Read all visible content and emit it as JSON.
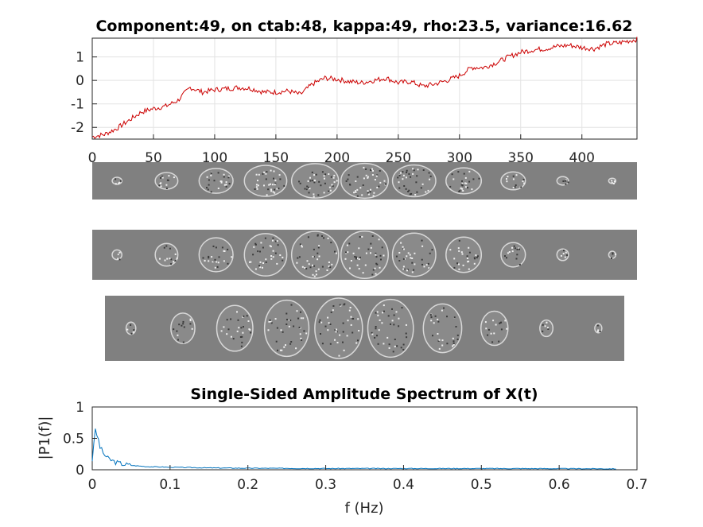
{
  "figure": {
    "background": "#ffffff",
    "axis_color": "#262626",
    "grid_color": "#e3e3e3"
  },
  "chart_data": [
    {
      "type": "line",
      "title": "Component:49, on ctab:48, kappa:49, rho:23.5, variance:16.62",
      "xlabel": "",
      "ylabel": "",
      "xlim": [
        0,
        445
      ],
      "ylim": [
        -2.5,
        1.8
      ],
      "xticks": [
        0,
        50,
        100,
        150,
        200,
        250,
        300,
        350,
        400
      ],
      "yticks": [
        -2,
        -1,
        0,
        1
      ],
      "grid": true,
      "color": "#cc0000",
      "series": [
        {
          "x": [
            0,
            10,
            20,
            30,
            40,
            50,
            60,
            70,
            80,
            90,
            100,
            110,
            120,
            130,
            140,
            150,
            160,
            170,
            180,
            190,
            200,
            210,
            220,
            230,
            240,
            250,
            260,
            270,
            280,
            290,
            300,
            310,
            320,
            330,
            340,
            350,
            360,
            370,
            380,
            390,
            400,
            410,
            420,
            430,
            440,
            445
          ],
          "values": [
            -2.4,
            -2.3,
            -2.05,
            -1.7,
            -1.35,
            -1.2,
            -1.1,
            -0.85,
            -0.3,
            -0.5,
            -0.4,
            -0.35,
            -0.3,
            -0.35,
            -0.5,
            -0.5,
            -0.45,
            -0.6,
            -0.15,
            0.1,
            0.05,
            -0.05,
            -0.1,
            0.0,
            0.1,
            -0.1,
            -0.05,
            -0.25,
            -0.15,
            0.0,
            0.2,
            0.55,
            0.55,
            0.75,
            1.0,
            1.2,
            1.3,
            1.35,
            1.45,
            1.5,
            1.4,
            1.35,
            1.55,
            1.6,
            1.7,
            1.75
          ]
        }
      ]
    },
    {
      "type": "line",
      "title": "Single-Sided Amplitude Spectrum of X(t)",
      "xlabel": "f (Hz)",
      "ylabel": "|P1(f)|",
      "xlim": [
        0,
        0.7
      ],
      "ylim": [
        0,
        1
      ],
      "xticks": [
        0,
        0.1,
        0.2,
        0.3,
        0.4,
        0.5,
        0.6,
        0.7
      ],
      "yticks": [
        0,
        0.5,
        1
      ],
      "grid": false,
      "color": "#0072bd",
      "series": [
        {
          "x": [
            0,
            0.002,
            0.004,
            0.006,
            0.008,
            0.01,
            0.015,
            0.02,
            0.03,
            0.04,
            0.05,
            0.07,
            0.1,
            0.15,
            0.2,
            0.3,
            0.4,
            0.5,
            0.6,
            0.673
          ],
          "values": [
            0.15,
            0.45,
            0.62,
            0.55,
            0.48,
            0.36,
            0.25,
            0.18,
            0.12,
            0.09,
            0.07,
            0.05,
            0.04,
            0.03,
            0.025,
            0.02,
            0.02,
            0.02,
            0.018,
            0.015
          ]
        }
      ]
    }
  ],
  "montages": {
    "background": "#808080",
    "rows": [
      {
        "view": "sagittal",
        "slices": 11
      },
      {
        "view": "coronal",
        "slices": 11
      },
      {
        "view": "axial",
        "slices": 10
      }
    ]
  }
}
